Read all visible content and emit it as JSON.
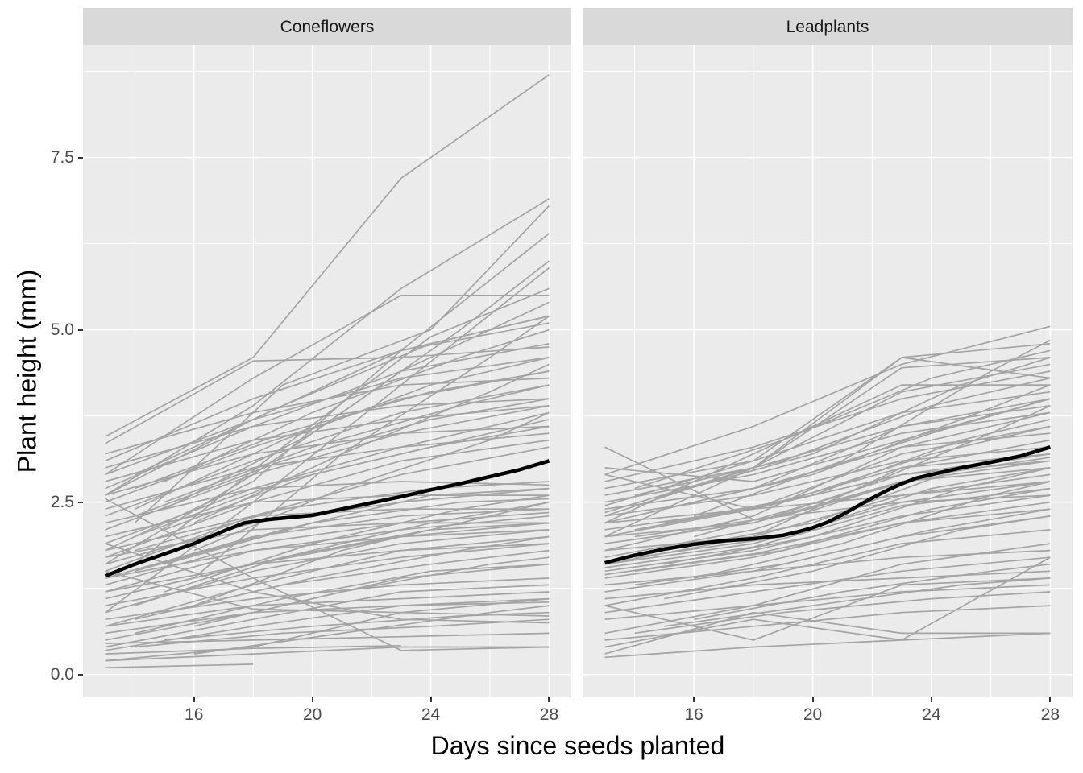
{
  "chart_data": {
    "type": "line",
    "description": "Faceted spaghetti plot of individual plant growth trajectories (gray lines) with overall mean growth curve (thick black line), one facet per species.",
    "xlabel": "Days since seeds planted",
    "ylabel": "Plant height (mm)",
    "xlim": [
      12.25,
      28.75
    ],
    "ylim": [
      -0.33,
      9.13
    ],
    "x_axis": {
      "breaks": [
        16,
        20,
        24,
        28
      ],
      "labels": [
        "16",
        "20",
        "24",
        "28"
      ],
      "minor_breaks": [
        14,
        18,
        22,
        26
      ]
    },
    "y_axis": {
      "breaks": [
        0,
        2.5,
        5,
        7.5
      ],
      "labels": [
        "0.0",
        "2.5",
        "5.0",
        "7.5"
      ],
      "minor_breaks": [
        1.25,
        3.75,
        6.25,
        8.75
      ]
    },
    "grid": true,
    "legend": "none",
    "line_encoding": "Each gray line is [startDay, h1, h2, h3, h4] giving heights (mm) at measurement days [startDay, startDay+5, startDay+10, 28]; arrays with fewer heights are plants whose measurements stop early.",
    "colors": {
      "panel_background": "#EBEBEB",
      "strip_background": "#D9D9D9",
      "strip_text": "#1A1A1A",
      "grid_line": "#FFFFFF",
      "plant_line": "#A4A4A4",
      "mean_line": "#000000",
      "tick_label": "#4D4D4D",
      "tick_mark": "#333333"
    },
    "facets": [
      {
        "label": "Coneflowers",
        "mean": {
          "days": [
            13,
            14,
            15,
            16,
            17,
            17.7,
            18.5,
            19,
            20,
            21,
            22,
            23,
            24,
            25,
            26,
            27,
            28
          ],
          "heights": [
            1.43,
            1.6,
            1.75,
            1.9,
            2.08,
            2.2,
            2.25,
            2.27,
            2.31,
            2.4,
            2.49,
            2.58,
            2.68,
            2.77,
            2.87,
            2.97,
            3.1
          ]
        },
        "lines": [
          [
            13,
            0.1,
            0.15
          ],
          [
            13,
            0.3,
            0.38,
            0.42
          ],
          [
            13,
            0.45,
            0.5,
            0.55,
            0.6
          ],
          [
            13,
            0.2,
            0.4,
            0.9,
            1.1
          ],
          [
            14,
            0.4,
            0.6,
            0.7,
            0.8
          ],
          [
            13,
            0.6,
            0.9,
            1.0,
            1.1
          ],
          [
            15,
            0.5,
            0.7,
            0.85,
            0.9
          ],
          [
            13,
            0.8,
            1.1,
            1.3,
            1.4
          ],
          [
            16,
            0.3,
            0.6,
            0.9,
            1.0
          ],
          [
            13,
            2.55,
            1.4,
            0.35,
            0.4
          ],
          [
            13,
            1.9,
            1.2,
            0.8,
            0.75
          ],
          [
            13,
            1.5,
            0.95,
            0.9,
            0.85
          ],
          [
            13,
            0.4,
            0.8,
            1.2,
            1.3
          ],
          [
            13,
            0.7,
            1.0,
            1.1,
            1.2
          ],
          [
            14,
            0.8,
            1.3,
            1.6,
            1.8
          ],
          [
            13,
            1.0,
            1.4,
            1.7,
            1.9
          ],
          [
            15,
            0.9,
            1.4,
            1.8,
            2.0
          ],
          [
            13,
            1.2,
            1.6,
            1.8,
            1.9
          ],
          [
            13,
            0.5,
            0.9,
            1.4,
            1.6
          ],
          [
            16,
            0.7,
            1.2,
            1.6,
            1.7
          ],
          [
            13,
            1.4,
            1.8,
            2.0,
            2.1
          ],
          [
            14,
            1.2,
            1.7,
            2.1,
            2.2
          ],
          [
            13,
            0.2,
            0.3,
            0.4,
            0.4
          ],
          [
            13,
            1.7,
            2.1,
            2.2,
            2.2
          ],
          [
            14,
            0.6,
            1.1,
            1.5,
            1.6
          ],
          [
            13,
            0.35,
            0.7,
            1.0,
            1.05
          ],
          [
            13,
            0.9,
            1.5,
            1.9,
            2.1
          ],
          [
            13,
            1.2,
            1.8,
            2.1,
            2.3
          ],
          [
            14,
            1.0,
            1.7,
            2.2,
            2.5
          ],
          [
            13,
            1.4,
            2.0,
            2.3,
            2.4
          ],
          [
            15,
            1.2,
            1.9,
            2.4,
            2.6
          ],
          [
            13,
            1.6,
            2.2,
            2.5,
            2.7
          ],
          [
            13,
            0.7,
            1.3,
            1.8,
            2.0
          ],
          [
            16,
            1.0,
            1.8,
            2.3,
            2.5
          ],
          [
            13,
            1.8,
            2.3,
            2.4,
            2.4
          ],
          [
            14,
            1.5,
            2.1,
            2.6,
            2.7
          ],
          [
            13,
            2.0,
            2.5,
            2.6,
            2.6
          ],
          [
            13,
            1.1,
            1.6,
            2.0,
            2.2
          ],
          [
            15,
            1.6,
            2.2,
            2.5,
            2.55
          ],
          [
            13,
            2.2,
            2.7,
            2.8,
            2.75
          ],
          [
            13,
            1.3,
            1.9,
            2.2,
            2.35
          ],
          [
            14,
            1.8,
            2.4,
            2.7,
            2.8
          ],
          [
            13,
            1.5,
            2.3,
            2.9,
            3.3
          ],
          [
            13,
            2.4,
            3.0,
            3.3,
            3.5
          ],
          [
            14,
            2.0,
            2.8,
            3.3,
            3.6
          ],
          [
            13,
            1.7,
            2.5,
            3.1,
            3.4
          ],
          [
            15,
            2.1,
            2.9,
            3.4,
            3.7
          ],
          [
            13,
            2.6,
            3.2,
            3.5,
            3.6
          ],
          [
            13,
            1.9,
            2.7,
            3.3,
            3.8
          ],
          [
            16,
            1.8,
            2.7,
            3.4,
            3.8
          ],
          [
            13,
            2.8,
            3.4,
            3.7,
            3.9
          ],
          [
            14,
            2.3,
            3.1,
            3.7,
            4.0
          ],
          [
            13,
            2.1,
            2.9,
            3.5,
            3.9
          ],
          [
            13,
            3.0,
            3.6,
            3.9,
            4.0
          ],
          [
            15,
            2.5,
            3.3,
            3.9,
            4.2
          ],
          [
            13,
            2.3,
            3.1,
            3.8,
            4.2
          ],
          [
            14,
            2.7,
            3.5,
            4.1,
            4.4
          ],
          [
            13,
            2.5,
            3.3,
            4.0,
            4.4
          ],
          [
            13,
            3.2,
            3.8,
            4.2,
            4.3
          ],
          [
            16,
            2.2,
            3.2,
            4.1,
            4.5
          ],
          [
            13,
            2.9,
            3.7,
            4.3,
            4.6
          ],
          [
            14,
            2.4,
            3.4,
            4.2,
            4.6
          ],
          [
            13,
            2.7,
            3.6,
            4.4,
            4.8
          ],
          [
            13,
            3.35,
            4.55,
            4.6,
            4.75
          ],
          [
            15,
            2.8,
            3.8,
            4.6,
            5.0
          ],
          [
            13,
            3.1,
            4.0,
            4.7,
            5.1
          ],
          [
            14,
            2.9,
            3.9,
            4.8,
            5.2
          ],
          [
            13,
            2.6,
            3.7,
            4.7,
            5.2
          ],
          [
            16,
            1.4,
            3.2,
            4.6,
            5.2
          ],
          [
            13,
            2.9,
            4.3,
            5.5,
            5.5
          ],
          [
            13,
            1.6,
            2.9,
            4.4,
            5.4
          ],
          [
            13,
            0.9,
            2.5,
            4.2,
            5.9
          ],
          [
            15,
            2.4,
            3.5,
            5.0,
            6.0
          ],
          [
            13,
            1.8,
            2.8,
            4.7,
            6.4
          ],
          [
            14,
            1.6,
            3.3,
            4.9,
            5.6
          ],
          [
            14,
            2.2,
            4.2,
            5.0,
            6.8
          ],
          [
            13,
            2.6,
            3.9,
            5.6,
            6.9
          ],
          [
            13,
            3.45,
            4.6,
            7.2,
            8.7
          ]
        ]
      },
      {
        "label": "Leadplants",
        "mean": {
          "days": [
            13,
            14,
            15,
            16,
            17,
            18,
            19,
            19.5,
            20,
            20.5,
            21,
            21.5,
            22,
            22.5,
            23,
            23.5,
            24,
            25,
            26,
            27,
            28
          ],
          "heights": [
            1.62,
            1.73,
            1.82,
            1.89,
            1.94,
            1.97,
            2.02,
            2.07,
            2.13,
            2.21,
            2.32,
            2.44,
            2.56,
            2.67,
            2.77,
            2.85,
            2.9,
            3.0,
            3.08,
            3.17,
            3.3
          ]
        },
        "lines": [
          [
            13,
            3.3,
            2.25,
            2.5,
            2.6
          ],
          [
            13,
            2.9,
            2.4,
            2.6,
            2.8
          ],
          [
            13,
            3.0,
            2.8,
            3.4,
            4.0
          ],
          [
            13,
            1.0,
            0.5,
            1.3,
            1.4
          ],
          [
            13,
            0.3,
            0.9,
            0.6,
            0.6
          ],
          [
            13,
            0.4,
            0.8,
            0.5,
            1.7
          ],
          [
            13,
            0.25,
            0.4,
            0.5,
            0.6
          ],
          [
            13,
            0.5,
            0.7,
            0.9,
            1.0
          ],
          [
            14,
            0.6,
            0.9,
            1.1,
            1.2
          ],
          [
            13,
            0.8,
            1.0,
            1.2,
            1.3
          ],
          [
            13,
            1.1,
            1.3,
            1.4,
            1.5
          ],
          [
            15,
            0.7,
            1.0,
            1.3,
            1.4
          ],
          [
            13,
            0.9,
            1.2,
            1.5,
            1.7
          ],
          [
            16,
            0.8,
            1.2,
            1.5,
            1.6
          ],
          [
            13,
            1.3,
            1.5,
            1.7,
            1.8
          ],
          [
            13,
            0.6,
            1.0,
            1.6,
            1.9
          ],
          [
            13,
            1.4,
            1.7,
            2.2,
            2.5
          ],
          [
            13,
            1.6,
            1.9,
            2.5,
            2.8
          ],
          [
            14,
            1.5,
            1.8,
            2.4,
            2.7
          ],
          [
            13,
            1.8,
            2.0,
            2.6,
            2.9
          ],
          [
            15,
            1.6,
            2.0,
            2.7,
            3.0
          ],
          [
            13,
            2.0,
            2.2,
            2.8,
            3.0
          ],
          [
            13,
            1.5,
            1.8,
            2.3,
            2.6
          ],
          [
            14,
            1.7,
            2.0,
            2.7,
            3.0
          ],
          [
            13,
            2.2,
            2.4,
            2.9,
            3.1
          ],
          [
            16,
            1.4,
            1.9,
            2.6,
            2.8
          ],
          [
            13,
            1.9,
            2.2,
            2.9,
            3.2
          ],
          [
            13,
            1.7,
            2.1,
            2.8,
            3.1
          ],
          [
            15,
            1.8,
            2.2,
            3.0,
            3.2
          ],
          [
            13,
            2.1,
            2.4,
            3.0,
            3.2
          ],
          [
            14,
            2.0,
            2.3,
            2.9,
            3.15
          ],
          [
            13,
            1.55,
            1.85,
            2.45,
            2.7
          ],
          [
            13,
            2.3,
            2.6,
            3.1,
            3.3
          ],
          [
            13,
            1.2,
            1.5,
            2.0,
            2.3
          ],
          [
            14,
            1.3,
            1.6,
            2.1,
            2.4
          ],
          [
            13,
            1.0,
            1.4,
            1.9,
            2.1
          ],
          [
            15,
            1.1,
            1.5,
            2.1,
            2.3
          ],
          [
            13,
            1.45,
            1.75,
            2.2,
            2.4
          ],
          [
            13,
            1.6,
            2.0,
            3.0,
            3.4
          ],
          [
            13,
            2.4,
            2.7,
            3.3,
            3.5
          ],
          [
            14,
            2.1,
            2.5,
            3.2,
            3.6
          ],
          [
            13,
            2.0,
            2.4,
            3.2,
            3.6
          ],
          [
            15,
            2.2,
            2.6,
            3.4,
            3.7
          ],
          [
            13,
            2.5,
            2.9,
            3.5,
            3.8
          ],
          [
            13,
            1.8,
            2.3,
            3.3,
            3.8
          ],
          [
            16,
            2.0,
            2.6,
            3.5,
            3.9
          ],
          [
            13,
            2.6,
            3.0,
            3.6,
            3.9
          ],
          [
            14,
            2.3,
            2.8,
            3.5,
            4.0
          ],
          [
            13,
            2.2,
            2.7,
            3.6,
            4.0
          ],
          [
            13,
            2.7,
            3.1,
            3.8,
            4.1
          ],
          [
            15,
            2.4,
            2.9,
            3.7,
            4.2
          ],
          [
            13,
            2.2,
            3.2,
            4.2,
            4.2
          ],
          [
            14,
            2.6,
            3.1,
            3.9,
            4.3
          ],
          [
            13,
            2.8,
            3.3,
            4.0,
            4.4
          ],
          [
            13,
            2.35,
            3.0,
            4.1,
            4.5
          ],
          [
            15,
            2.6,
            3.2,
            4.2,
            4.6
          ],
          [
            13,
            2.45,
            3.1,
            4.6,
            4.8
          ],
          [
            13,
            2.3,
            3.0,
            4.45,
            4.6
          ],
          [
            14,
            2.7,
            3.4,
            4.3,
            4.7
          ],
          [
            13,
            2.0,
            3.0,
            4.6,
            4.3
          ],
          [
            16,
            2.3,
            3.1,
            4.4,
            4.85
          ],
          [
            13,
            2.9,
            3.6,
            4.5,
            5.05
          ]
        ]
      }
    ]
  }
}
